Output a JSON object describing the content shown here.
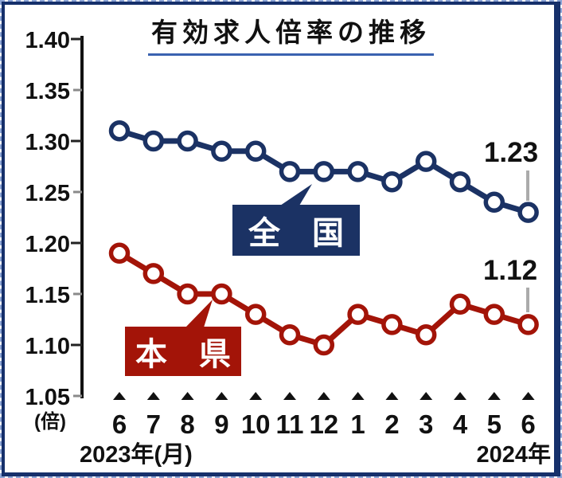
{
  "title": {
    "text": "有効求人倍率の推移"
  },
  "y_axis": {
    "unit": "(倍)",
    "ticks": [
      "1.40",
      "1.35",
      "1.30",
      "1.25",
      "1.20",
      "1.15",
      "1.10",
      "1.05"
    ]
  },
  "x_axis": {
    "months": [
      "6",
      "7",
      "8",
      "9",
      "10",
      "11",
      "12",
      "1",
      "2",
      "3",
      "4",
      "5",
      "6"
    ],
    "left_caption": "2023年(月)",
    "right_caption": "2024年"
  },
  "colors": {
    "national": "#1b3264",
    "prefecture": "#a31408",
    "axis": "#222222",
    "minor_tick": "#8a8a8a",
    "connector": "#ababab",
    "frame": "#16306b",
    "outer_dash": "#8ea6d6",
    "title_underline": "#3a62b0"
  },
  "chart_data": {
    "type": "line",
    "title": "有効求人倍率の推移",
    "categories": [
      "2023-06",
      "2023-07",
      "2023-08",
      "2023-09",
      "2023-10",
      "2023-11",
      "2023-12",
      "2024-01",
      "2024-02",
      "2024-03",
      "2024-04",
      "2024-05",
      "2024-06"
    ],
    "xlabel": "月",
    "ylabel": "倍",
    "ylim": [
      1.05,
      1.4
    ],
    "grid": false,
    "legend_position": "inline-callouts",
    "series": [
      {
        "name": "全国",
        "label": "全　国",
        "color": "#1b3264",
        "values": [
          1.31,
          1.3,
          1.3,
          1.29,
          1.29,
          1.27,
          1.27,
          1.27,
          1.26,
          1.28,
          1.26,
          1.24,
          1.23
        ],
        "end_label": "1.23"
      },
      {
        "name": "本県",
        "label": "本　県",
        "color": "#a31408",
        "values": [
          1.19,
          1.17,
          1.15,
          1.15,
          1.13,
          1.11,
          1.1,
          1.13,
          1.12,
          1.11,
          1.14,
          1.13,
          1.12
        ],
        "end_label": "1.12"
      }
    ]
  }
}
